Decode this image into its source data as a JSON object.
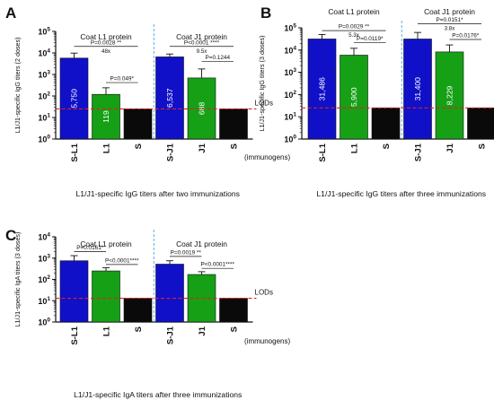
{
  "colors": {
    "S-L1": "#1010c8",
    "L1": "#16a016",
    "S": "#0a0a0a",
    "S-J1": "#1010c8",
    "J1": "#16a016",
    "lod_line": "#e02020",
    "divider": "#4aa3e0"
  },
  "chart_data": [
    {
      "panel": "A",
      "type": "bar",
      "ylabel": "L1/J1-specific IgG titers (2 doses)",
      "xlabel": "L1/J1-specific IgG titers after two  immunizations",
      "yscale": "log",
      "ylim": [
        1,
        100000
      ],
      "yticks": [
        {
          "exp": "0",
          "value": 1
        },
        {
          "exp": "1",
          "value": 10
        },
        {
          "exp": "2",
          "value": 100
        },
        {
          "exp": "3",
          "value": 1000
        },
        {
          "exp": "4",
          "value": 10000
        },
        {
          "exp": "5",
          "value": 100000
        }
      ],
      "categories": [
        "S-L1",
        "L1",
        "S",
        "S-J1",
        "J1",
        "S"
      ],
      "color_keys": [
        "S-L1",
        "L1",
        "S",
        "S-J1",
        "J1",
        "S"
      ],
      "values": [
        5750,
        119,
        25,
        6537,
        688,
        25
      ],
      "errors_upper": [
        9800,
        240,
        25,
        8900,
        1800,
        25
      ],
      "bar_labels": [
        "5,750",
        "119",
        "",
        "6,537",
        "688",
        ""
      ],
      "lod": 25,
      "lod_label": "LODs",
      "group_labels": [
        "Coat L1 protein",
        "Coat J1 protein"
      ],
      "immunogens_label": "(immunogens)",
      "comparisons": [
        {
          "from": 0,
          "to": 2,
          "text": "P=0.0028 **",
          "fold": "48x",
          "level": 20000
        },
        {
          "from": 1,
          "to": 2,
          "text": "P=0.049*",
          "fold": "",
          "level": 420
        },
        {
          "from": 3,
          "to": 5,
          "text": "P<0.0001 ****",
          "fold": "9.5x",
          "level": 20000
        },
        {
          "from": 4,
          "to": 5,
          "text": "P=0.1244",
          "fold": "",
          "level": 4000
        }
      ]
    },
    {
      "panel": "B",
      "type": "bar",
      "ylabel": "L1/J1-specific IgG titers (3 doses)",
      "xlabel": "L1/J1-specific IgG titers after three immunizations",
      "yscale": "log",
      "ylim": [
        1,
        100000
      ],
      "yticks": [
        {
          "exp": "0",
          "value": 1
        },
        {
          "exp": "1",
          "value": 10
        },
        {
          "exp": "2",
          "value": 100
        },
        {
          "exp": "3",
          "value": 1000
        },
        {
          "exp": "4",
          "value": 10000
        },
        {
          "exp": "5",
          "value": 100000
        }
      ],
      "categories": [
        "S-L1",
        "L1",
        "S",
        "S-J1",
        "J1",
        "S"
      ],
      "color_keys": [
        "S-L1",
        "L1",
        "S",
        "S-J1",
        "J1",
        "S"
      ],
      "values": [
        31486,
        5900,
        25,
        31400,
        8229,
        25
      ],
      "errors_upper": [
        50000,
        12000,
        25,
        62000,
        17000,
        25
      ],
      "bar_labels": [
        "31,486",
        "5,900",
        "",
        "31,400",
        "8,229",
        ""
      ],
      "lod": 25,
      "lod_label": "LODs",
      "group_labels": [
        "Coat L1 protein",
        "Coat J1 protein"
      ],
      "immunogens_label": "",
      "comparisons": [
        {
          "from": 0,
          "to": 2,
          "text": "P=0.0029 **",
          "fold": "5.3x",
          "level": 75000
        },
        {
          "from": 1,
          "to": 2,
          "text": "P=0.0119*",
          "fold": "",
          "level": 22000
        },
        {
          "from": 3,
          "to": 5,
          "text": "P=0.0151*",
          "fold": "3.8x",
          "level": 150000
        },
        {
          "from": 4,
          "to": 5,
          "text": "P=0.0176*",
          "fold": "",
          "level": 30000
        }
      ]
    },
    {
      "panel": "C",
      "type": "bar",
      "ylabel": "L1/J1-specific IgA titers (3 doses)",
      "xlabel": "L1/J1-specific IgA titers after three immunizations",
      "yscale": "log",
      "ylim": [
        1,
        10000
      ],
      "yticks": [
        {
          "exp": "0",
          "value": 1
        },
        {
          "exp": "1",
          "value": 10
        },
        {
          "exp": "2",
          "value": 100
        },
        {
          "exp": "3",
          "value": 1000
        },
        {
          "exp": "4",
          "value": 10000
        }
      ],
      "categories": [
        "S-L1",
        "L1",
        "S",
        "S-J1",
        "J1",
        "S"
      ],
      "color_keys": [
        "S-L1",
        "L1",
        "S",
        "S-J1",
        "J1",
        "S"
      ],
      "values": [
        750,
        250,
        13,
        520,
        170,
        13
      ],
      "errors_upper": [
        1300,
        350,
        13,
        750,
        230,
        13
      ],
      "bar_labels": [
        "",
        "",
        "",
        "",
        "",
        ""
      ],
      "lod": 13,
      "lod_label": "LODs",
      "group_labels": [
        "Coat L1 protein",
        "Coat J1 protein"
      ],
      "immunogens_label": "(immunogens)",
      "comparisons": [
        {
          "from": 0,
          "to": 1,
          "text": "P=0.0161*",
          "fold": "",
          "level": 2000
        },
        {
          "from": 1,
          "to": 2,
          "text": "P<0.0001****",
          "fold": "",
          "level": 500
        },
        {
          "from": 3,
          "to": 4,
          "text": "P=0.0019 **",
          "fold": "",
          "level": 1200
        },
        {
          "from": 4,
          "to": 5,
          "text": "P<0.0001****",
          "fold": "",
          "level": 330
        }
      ]
    }
  ]
}
